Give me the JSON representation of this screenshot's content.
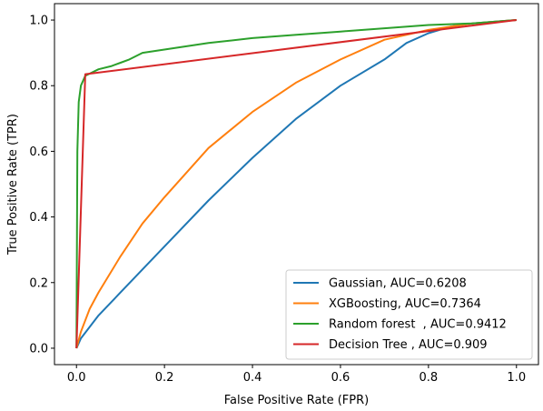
{
  "chart_data": {
    "type": "line",
    "title": "",
    "xlabel": "False Positive Rate (FPR)",
    "ylabel": "True Positive Rate (TPR)",
    "xlim": [
      -0.05,
      1.05
    ],
    "ylim": [
      -0.05,
      1.05
    ],
    "xticks": [
      0.0,
      0.2,
      0.4,
      0.6,
      0.8,
      1.0
    ],
    "yticks": [
      0.0,
      0.2,
      0.4,
      0.6,
      0.8,
      1.0
    ],
    "xtick_labels": [
      "0.0",
      "0.2",
      "0.4",
      "0.6",
      "0.8",
      "1.0"
    ],
    "ytick_labels": [
      "0.0",
      "0.2",
      "0.4",
      "0.6",
      "0.8",
      "1.0"
    ],
    "grid": false,
    "legend_position": "lower-right",
    "series": [
      {
        "name": "Gaussian, AUC=0.6208",
        "color": "#1f77b4",
        "x": [
          0.0,
          0.01,
          0.05,
          0.1,
          0.15,
          0.2,
          0.3,
          0.4,
          0.5,
          0.6,
          0.7,
          0.75,
          0.8,
          0.85,
          0.9,
          1.0
        ],
        "y": [
          0.0,
          0.03,
          0.1,
          0.17,
          0.24,
          0.31,
          0.45,
          0.58,
          0.7,
          0.8,
          0.88,
          0.93,
          0.96,
          0.98,
          0.99,
          1.0
        ]
      },
      {
        "name": "XGBoosting, AUC=0.7364",
        "color": "#ff7f0e",
        "x": [
          0.0,
          0.01,
          0.03,
          0.05,
          0.1,
          0.15,
          0.2,
          0.3,
          0.4,
          0.5,
          0.6,
          0.7,
          0.8,
          0.9,
          1.0
        ],
        "y": [
          0.0,
          0.05,
          0.12,
          0.17,
          0.28,
          0.38,
          0.46,
          0.61,
          0.72,
          0.81,
          0.88,
          0.94,
          0.97,
          0.99,
          1.0
        ]
      },
      {
        "name": "Random forest  , AUC=0.9412",
        "color": "#2ca02c",
        "x": [
          0.0,
          0.002,
          0.005,
          0.01,
          0.02,
          0.05,
          0.08,
          0.1,
          0.12,
          0.15,
          0.2,
          0.3,
          0.4,
          0.5,
          0.6,
          0.7,
          0.8,
          0.9,
          1.0
        ],
        "y": [
          0.0,
          0.6,
          0.75,
          0.8,
          0.83,
          0.85,
          0.86,
          0.87,
          0.88,
          0.9,
          0.91,
          0.93,
          0.945,
          0.955,
          0.965,
          0.975,
          0.985,
          0.99,
          1.0
        ]
      },
      {
        "name": "Decision Tree , AUC=0.909",
        "color": "#d62728",
        "x": [
          0.0,
          0.02,
          1.0
        ],
        "y": [
          0.0,
          0.835,
          1.0
        ]
      }
    ]
  }
}
